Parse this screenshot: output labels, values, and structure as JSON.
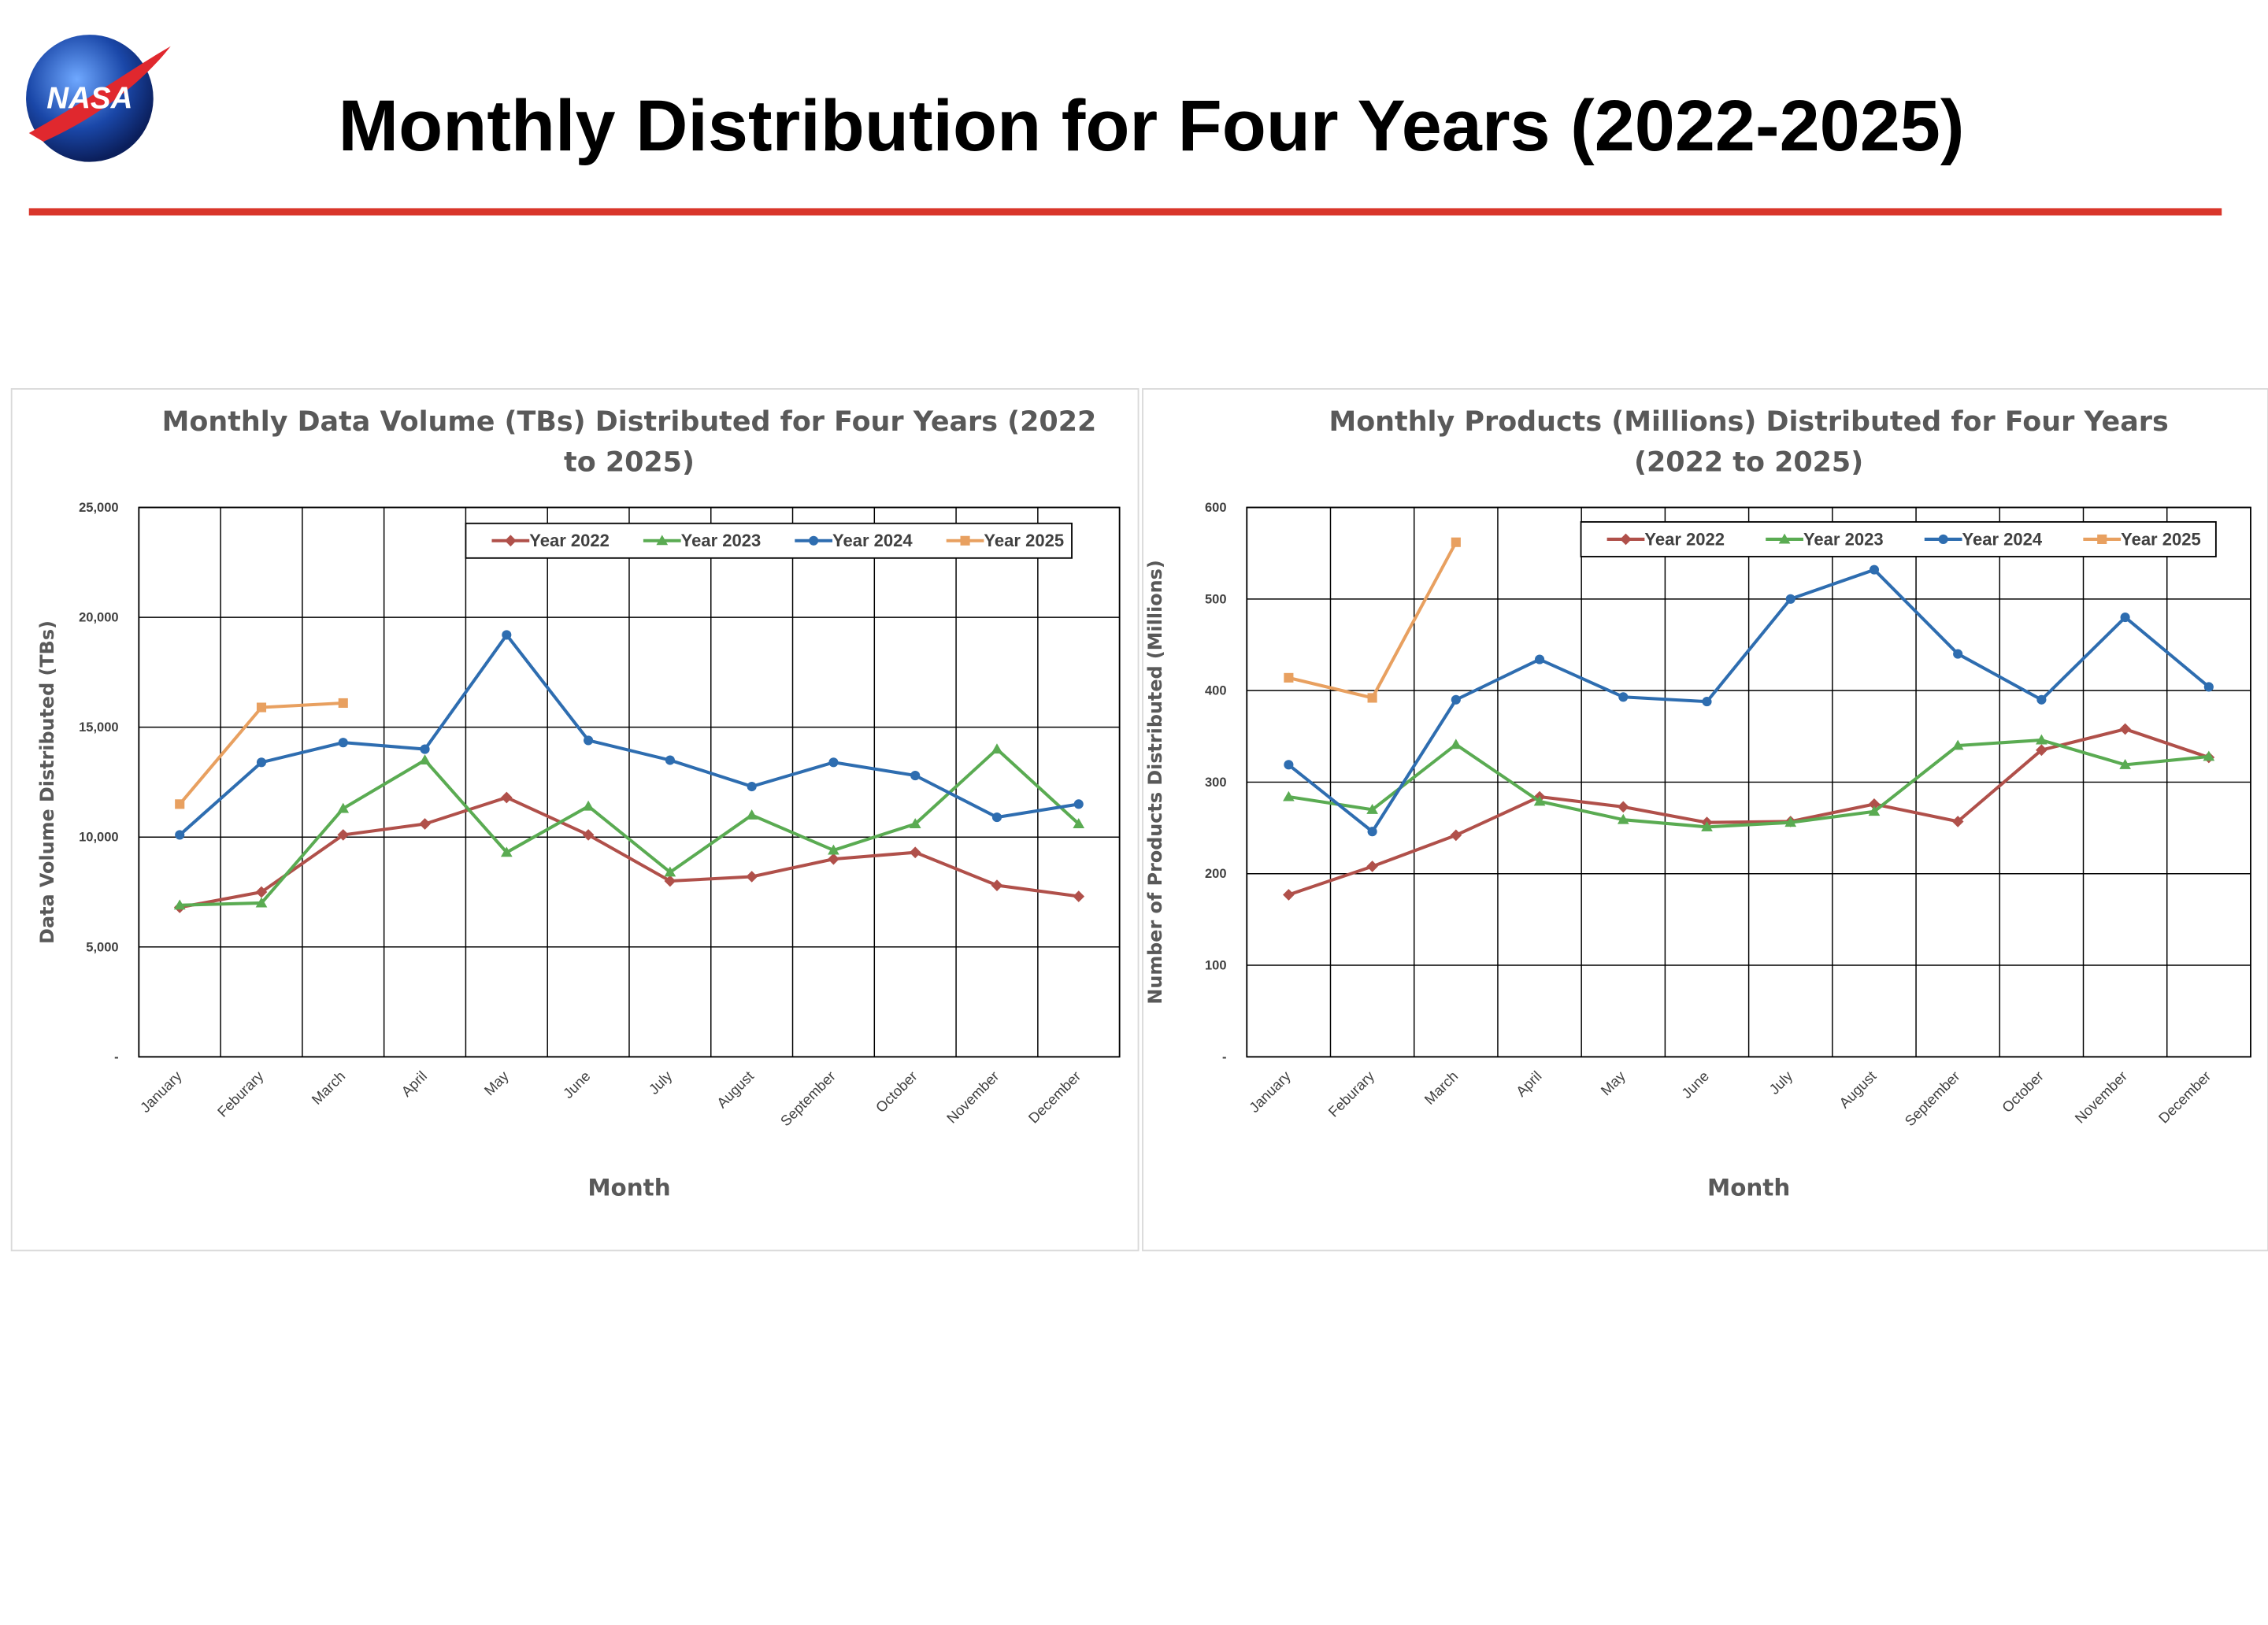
{
  "header": {
    "title": "Monthly Distribution for Four Years (2022-2025)",
    "logo_text": "NASA"
  },
  "chart_data": [
    {
      "type": "line",
      "title": "Monthly Data Volume (TBs) Distributed for Four Years (2022 to 2025)",
      "x_label": "Month",
      "y_label": "Data Volume Distributed (TBs)",
      "categories": [
        "January",
        "Feburary",
        "March",
        "April",
        "May",
        "June",
        "July",
        "August",
        "September",
        "October",
        "November",
        "December"
      ],
      "ylim": [
        0,
        25000
      ],
      "yticks": [
        {
          "value": 0,
          "label": "-"
        },
        {
          "value": 5000,
          "label": "5,000"
        },
        {
          "value": 10000,
          "label": "10,000"
        },
        {
          "value": 15000,
          "label": "15,000"
        },
        {
          "value": 20000,
          "label": "20,000"
        },
        {
          "value": 25000,
          "label": "25,000"
        }
      ],
      "grid": true,
      "legend": "top-right",
      "series": [
        {
          "name": "Year 2022",
          "color": "#b0504a",
          "values": [
            6800,
            7500,
            10100,
            10600,
            11800,
            10100,
            8000,
            8200,
            9000,
            9300,
            7800,
            7300
          ]
        },
        {
          "name": "Year 2023",
          "color": "#5aab52",
          "values": [
            6900,
            7000,
            11300,
            13500,
            9300,
            11400,
            8400,
            11000,
            9400,
            10600,
            14000,
            10600
          ]
        },
        {
          "name": "Year 2024",
          "color": "#2e6db0",
          "values": [
            10100,
            13400,
            14300,
            14000,
            19200,
            14400,
            13500,
            12300,
            13400,
            12800,
            10900,
            11500
          ]
        },
        {
          "name": "Year 2025",
          "color": "#e8a060",
          "values": [
            11500,
            15900,
            16100,
            null,
            null,
            null,
            null,
            null,
            null,
            null,
            null,
            null
          ]
        }
      ]
    },
    {
      "type": "line",
      "title": "Monthly Products (Millions) Distributed for Four Years (2022 to 2025)",
      "x_label": "Month",
      "y_label": "Number of Products Distributed (Millions)",
      "categories": [
        "January",
        "Feburary",
        "March",
        "April",
        "May",
        "June",
        "July",
        "August",
        "September",
        "October",
        "November",
        "December"
      ],
      "ylim": [
        0,
        600
      ],
      "yticks": [
        {
          "value": 0,
          "label": "-"
        },
        100,
        200,
        300,
        400,
        500,
        600
      ],
      "grid": true,
      "legend": "top-right",
      "series": [
        {
          "name": "Year 2022",
          "color": "#b0504a",
          "values": [
            177,
            208,
            242,
            284,
            273,
            256,
            257,
            276,
            257,
            335,
            358,
            327
          ]
        },
        {
          "name": "Year 2023",
          "color": "#5aab52",
          "values": [
            284,
            270,
            341,
            279,
            259,
            251,
            256,
            268,
            340,
            346,
            319,
            328
          ]
        },
        {
          "name": "Year 2024",
          "color": "#2e6db0",
          "values": [
            319,
            246,
            390,
            434,
            393,
            388,
            500,
            532,
            440,
            390,
            480,
            404
          ]
        },
        {
          "name": "Year 2025",
          "color": "#e8a060",
          "values": [
            414,
            392,
            562,
            null,
            null,
            null,
            null,
            null,
            null,
            null,
            null,
            null
          ]
        }
      ]
    }
  ]
}
